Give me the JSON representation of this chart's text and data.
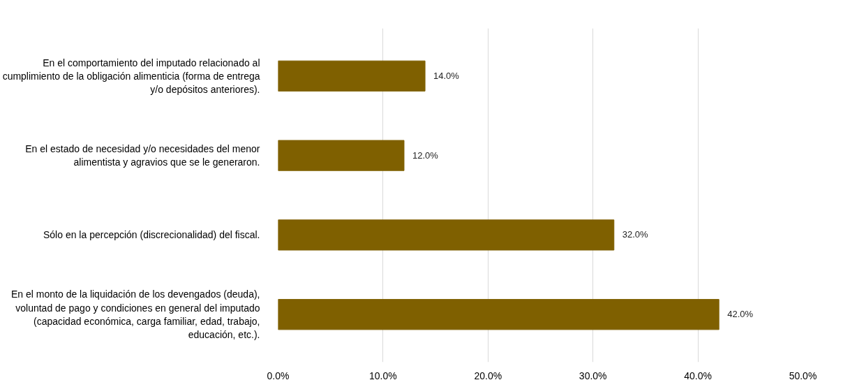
{
  "chart_data": {
    "type": "bar",
    "orientation": "horizontal",
    "categories": [
      "En el comportamiento del imputado relacionado al cumplimiento de la obligación alimenticia (forma de entrega y/o depósitos anteriores).",
      "En el estado de necesidad y/o necesidades del menor alimentista y agravios que se le generaron.",
      "Sólo en la percepción (discrecionalidad) del fiscal.",
      "En el monto de la liquidación de los devengados (deuda), voluntad de pago y condiciones en general del imputado (capacidad económica, carga familiar, edad, trabajo, educación, etc.)."
    ],
    "values": [
      14.0,
      12.0,
      32.0,
      42.0
    ],
    "value_labels": [
      "14.0%",
      "12.0%",
      "32.0%",
      "42.0%"
    ],
    "color": "#7f6000",
    "xlim": [
      0,
      50
    ],
    "xticks": [
      {
        "value": 0,
        "label": "0.0%"
      },
      {
        "value": 10,
        "label": "10.0%"
      },
      {
        "value": 20,
        "label": "20.0%"
      },
      {
        "value": 30,
        "label": "30.0%"
      },
      {
        "value": 40,
        "label": "40.0%"
      },
      {
        "value": 50,
        "label": "50.0%"
      }
    ],
    "grid": "x"
  }
}
